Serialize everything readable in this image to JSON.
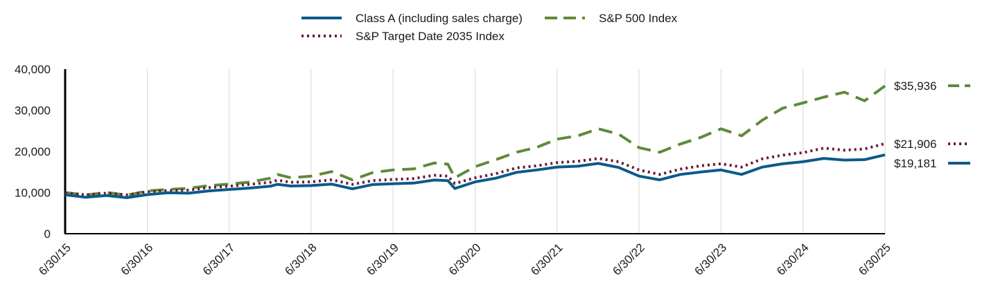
{
  "chart_data": {
    "type": "line",
    "title": "",
    "xlabel": "",
    "ylabel": "",
    "ylim": [
      0,
      40000
    ],
    "y_ticks": [
      0,
      10000,
      20000,
      30000,
      40000
    ],
    "y_tick_labels": [
      "0",
      "10,000",
      "20,000",
      "30,000",
      "40,000"
    ],
    "xlim": [
      "2015-06-30",
      "2025-06-30"
    ],
    "x_ticks": [
      "2015-06-30",
      "2016-06-30",
      "2017-06-30",
      "2018-06-30",
      "2019-06-30",
      "2020-06-30",
      "2021-06-30",
      "2022-06-30",
      "2023-06-30",
      "2024-06-30",
      "2025-06-30"
    ],
    "x_tick_labels": [
      "6/30/15",
      "6/30/16",
      "6/30/17",
      "6/30/18",
      "6/30/19",
      "6/30/20",
      "6/30/21",
      "6/30/22",
      "6/30/23",
      "6/30/24",
      "6/30/25"
    ],
    "grid": "vertical",
    "legend_position": "top-center",
    "series": [
      {
        "name": "Class A (including sales charge)",
        "color": "#0b5a8a",
        "style": "solid",
        "end_label": "$19,181",
        "points": [
          [
            "2015-06-30",
            9450
          ],
          [
            "2015-09-30",
            8850
          ],
          [
            "2015-12-31",
            9300
          ],
          [
            "2016-03-31",
            8750
          ],
          [
            "2016-06-30",
            9500
          ],
          [
            "2016-09-30",
            9950
          ],
          [
            "2016-12-31",
            9850
          ],
          [
            "2017-03-31",
            10400
          ],
          [
            "2017-06-30",
            10750
          ],
          [
            "2017-09-30",
            11100
          ],
          [
            "2017-12-31",
            11550
          ],
          [
            "2018-01-31",
            12000
          ],
          [
            "2018-03-31",
            11600
          ],
          [
            "2018-06-30",
            11700
          ],
          [
            "2018-09-30",
            12050
          ],
          [
            "2018-12-31",
            10900
          ],
          [
            "2019-03-31",
            11950
          ],
          [
            "2019-06-30",
            12150
          ],
          [
            "2019-09-30",
            12300
          ],
          [
            "2019-12-31",
            13050
          ],
          [
            "2020-02-29",
            12900
          ],
          [
            "2020-03-31",
            11000
          ],
          [
            "2020-06-30",
            12600
          ],
          [
            "2020-09-30",
            13500
          ],
          [
            "2020-12-31",
            14900
          ],
          [
            "2021-03-31",
            15500
          ],
          [
            "2021-06-30",
            16200
          ],
          [
            "2021-09-30",
            16400
          ],
          [
            "2021-12-31",
            17100
          ],
          [
            "2022-03-31",
            16100
          ],
          [
            "2022-06-30",
            14000
          ],
          [
            "2022-09-30",
            13100
          ],
          [
            "2022-12-31",
            14400
          ],
          [
            "2023-03-31",
            15000
          ],
          [
            "2023-06-30",
            15500
          ],
          [
            "2023-09-30",
            14400
          ],
          [
            "2023-12-31",
            16200
          ],
          [
            "2024-03-31",
            17000
          ],
          [
            "2024-06-30",
            17500
          ],
          [
            "2024-09-30",
            18300
          ],
          [
            "2024-12-31",
            17900
          ],
          [
            "2025-03-31",
            18000
          ],
          [
            "2025-06-30",
            19181
          ]
        ]
      },
      {
        "name": "S&P 500 Index",
        "color": "#5e8a3a",
        "style": "dashed",
        "end_label": "$35,936",
        "points": [
          [
            "2015-06-30",
            10000
          ],
          [
            "2015-09-30",
            9400
          ],
          [
            "2015-12-31",
            10050
          ],
          [
            "2016-03-31",
            9350
          ],
          [
            "2016-06-30",
            10400
          ],
          [
            "2016-09-30",
            10750
          ],
          [
            "2016-12-31",
            11050
          ],
          [
            "2017-03-31",
            11700
          ],
          [
            "2017-06-30",
            12050
          ],
          [
            "2017-09-30",
            12550
          ],
          [
            "2017-12-31",
            13500
          ],
          [
            "2018-01-31",
            14400
          ],
          [
            "2018-03-31",
            13600
          ],
          [
            "2018-06-30",
            14000
          ],
          [
            "2018-09-30",
            15100
          ],
          [
            "2018-12-31",
            13100
          ],
          [
            "2019-03-31",
            14850
          ],
          [
            "2019-06-30",
            15500
          ],
          [
            "2019-09-30",
            15750
          ],
          [
            "2019-12-31",
            17200
          ],
          [
            "2020-02-29",
            16900
          ],
          [
            "2020-03-31",
            13600
          ],
          [
            "2020-06-30",
            16300
          ],
          [
            "2020-09-30",
            18000
          ],
          [
            "2020-12-31",
            19800
          ],
          [
            "2021-03-31",
            21000
          ],
          [
            "2021-06-30",
            23000
          ],
          [
            "2021-09-30",
            23800
          ],
          [
            "2021-12-31",
            25500
          ],
          [
            "2022-03-31",
            24200
          ],
          [
            "2022-06-30",
            20900
          ],
          [
            "2022-09-30",
            19800
          ],
          [
            "2022-12-31",
            21800
          ],
          [
            "2023-03-31",
            23400
          ],
          [
            "2023-06-30",
            25500
          ],
          [
            "2023-09-30",
            23800
          ],
          [
            "2023-12-31",
            27600
          ],
          [
            "2024-03-31",
            30500
          ],
          [
            "2024-06-30",
            31800
          ],
          [
            "2024-09-30",
            33200
          ],
          [
            "2024-12-31",
            34400
          ],
          [
            "2025-03-31",
            32300
          ],
          [
            "2025-06-30",
            35936
          ]
        ]
      },
      {
        "name": "S&P Target Date 2035 Index",
        "color": "#6b1836",
        "style": "dotted",
        "end_label": "$21,906",
        "points": [
          [
            "2015-06-30",
            9950
          ],
          [
            "2015-09-30",
            9450
          ],
          [
            "2015-12-31",
            9850
          ],
          [
            "2016-03-31",
            9450
          ],
          [
            "2016-06-30",
            10200
          ],
          [
            "2016-09-30",
            10500
          ],
          [
            "2016-12-31",
            10600
          ],
          [
            "2017-03-31",
            11200
          ],
          [
            "2017-06-30",
            11550
          ],
          [
            "2017-09-30",
            12000
          ],
          [
            "2017-12-31",
            12500
          ],
          [
            "2018-01-31",
            13000
          ],
          [
            "2018-03-31",
            12500
          ],
          [
            "2018-06-30",
            12600
          ],
          [
            "2018-09-30",
            13100
          ],
          [
            "2018-12-31",
            12000
          ],
          [
            "2019-03-31",
            12900
          ],
          [
            "2019-06-30",
            13200
          ],
          [
            "2019-09-30",
            13400
          ],
          [
            "2019-12-31",
            14200
          ],
          [
            "2020-02-29",
            14000
          ],
          [
            "2020-03-31",
            12200
          ],
          [
            "2020-06-30",
            13600
          ],
          [
            "2020-09-30",
            14600
          ],
          [
            "2020-12-31",
            16000
          ],
          [
            "2021-03-31",
            16500
          ],
          [
            "2021-06-30",
            17300
          ],
          [
            "2021-09-30",
            17600
          ],
          [
            "2021-12-31",
            18300
          ],
          [
            "2022-03-31",
            17500
          ],
          [
            "2022-06-30",
            15500
          ],
          [
            "2022-09-30",
            14400
          ],
          [
            "2022-12-31",
            15700
          ],
          [
            "2023-03-31",
            16500
          ],
          [
            "2023-06-30",
            17000
          ],
          [
            "2023-09-30",
            16200
          ],
          [
            "2023-12-31",
            18200
          ],
          [
            "2024-03-31",
            19100
          ],
          [
            "2024-06-30",
            19700
          ],
          [
            "2024-09-30",
            20800
          ],
          [
            "2024-12-31",
            20300
          ],
          [
            "2025-03-31",
            20600
          ],
          [
            "2025-06-30",
            21906
          ]
        ]
      }
    ]
  }
}
